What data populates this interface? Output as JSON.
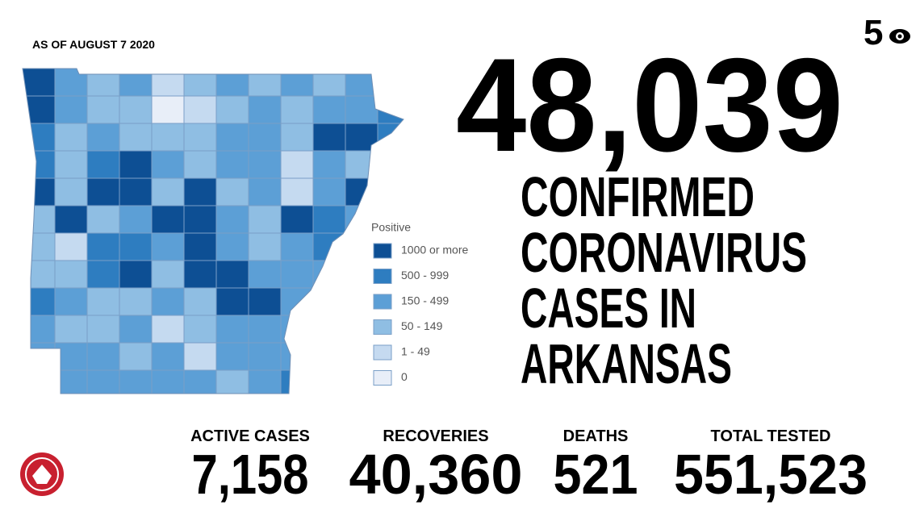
{
  "date_note": "AS OF AUGUST 7 2020",
  "station_logo": "5",
  "headline_number": "48,039",
  "headline_lines": [
    "CONFIRMED",
    "CORONAVIRUS",
    "CASES IN",
    "ARKANSAS"
  ],
  "legend": {
    "title": "Positive",
    "items": [
      {
        "label": "1000 or more",
        "color": "#0d4f94"
      },
      {
        "label": "500 - 999",
        "color": "#2e7dc0"
      },
      {
        "label": "150 - 499",
        "color": "#5c9fd6"
      },
      {
        "label": "50 - 149",
        "color": "#8fbee3"
      },
      {
        "label": "1 - 49",
        "color": "#c5daf0"
      },
      {
        "label": "0",
        "color": "#e8eef8"
      }
    ]
  },
  "stats": [
    {
      "label": "ACTIVE CASES",
      "value": "7,158"
    },
    {
      "label": "RECOVERIES",
      "value": "40,360"
    },
    {
      "label": "DEATHS",
      "value": "521"
    },
    {
      "label": "TOTAL TESTED",
      "value": "551,523"
    }
  ]
}
